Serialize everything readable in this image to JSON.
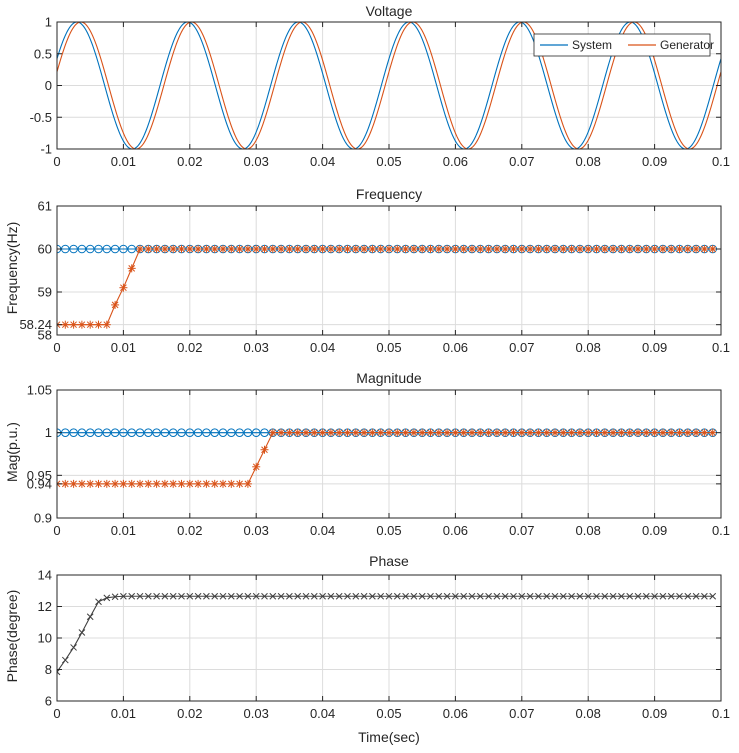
{
  "figure": {
    "colors": {
      "system": "#0072BD",
      "generator": "#D95319",
      "phase": "#404040",
      "grid": "#dcdcdc",
      "axis": "#262626"
    }
  },
  "chart_data": [
    {
      "id": "voltage",
      "type": "line",
      "title": "Voltage",
      "xlabel": "",
      "ylabel": "",
      "xlim": [
        0,
        0.1
      ],
      "ylim": [
        -1,
        1
      ],
      "xticks": [
        0,
        0.01,
        0.02,
        0.03,
        0.04,
        0.05,
        0.06,
        0.07,
        0.08,
        0.09,
        0.1
      ],
      "xtick_labels": [
        "0",
        "0.01",
        "0.02",
        "0.03",
        "0.04",
        "0.05",
        "0.06",
        "0.07",
        "0.08",
        "0.09",
        "0.1"
      ],
      "yticks": [
        -1,
        -0.5,
        0,
        0.5,
        1
      ],
      "ytick_labels": [
        "-1",
        "-0.5",
        "0",
        "0.5",
        "1"
      ],
      "grid": true,
      "legend": "top-right",
      "series": [
        {
          "name": "System",
          "color": "#0072BD",
          "function": "sin",
          "amplitude": 1,
          "frequency_hz": 60,
          "phase_deg": 25
        },
        {
          "name": "Generator",
          "color": "#D95319",
          "function": "sin",
          "amplitude": 1,
          "frequency_hz": 60,
          "phase_deg": 12.5
        }
      ]
    },
    {
      "id": "frequency",
      "type": "line",
      "title": "Frequency",
      "xlabel": "",
      "ylabel": "Frequency(Hz)",
      "xlim": [
        0,
        0.1
      ],
      "ylim": [
        58,
        61
      ],
      "xticks": [
        0,
        0.01,
        0.02,
        0.03,
        0.04,
        0.05,
        0.06,
        0.07,
        0.08,
        0.09,
        0.1
      ],
      "xtick_labels": [
        "0",
        "0.01",
        "0.02",
        "0.03",
        "0.04",
        "0.05",
        "0.06",
        "0.07",
        "0.08",
        "0.09",
        "0.1"
      ],
      "yticks": [
        58,
        58.24,
        59,
        60,
        61
      ],
      "ytick_labels": [
        "58",
        "58.24",
        "59",
        "60",
        "61"
      ],
      "grid": true,
      "x": [
        0,
        0.00125,
        0.0025,
        0.00375,
        0.005,
        0.00625,
        0.0075,
        0.00875,
        0.01,
        0.01125,
        0.0125,
        0.01375,
        0.015,
        0.01625,
        0.0175,
        0.01875,
        0.02,
        0.02125,
        0.0225,
        0.02375,
        0.025,
        0.02625,
        0.0275,
        0.02875,
        0.03,
        0.03125,
        0.0325,
        0.03375,
        0.035,
        0.03625,
        0.0375,
        0.03875,
        0.04,
        0.04125,
        0.0425,
        0.04375,
        0.045,
        0.04625,
        0.0475,
        0.04875,
        0.05,
        0.05125,
        0.0525,
        0.05375,
        0.055,
        0.05625,
        0.0575,
        0.05875,
        0.06,
        0.06125,
        0.0625,
        0.06375,
        0.065,
        0.06625,
        0.0675,
        0.06875,
        0.07,
        0.07125,
        0.0725,
        0.07375,
        0.075,
        0.07625,
        0.0775,
        0.07875,
        0.08,
        0.08125,
        0.0825,
        0.08375,
        0.085,
        0.08625,
        0.0875,
        0.08875,
        0.09,
        0.09125,
        0.0925,
        0.09375,
        0.095,
        0.09625,
        0.0975,
        0.09875
      ],
      "series": [
        {
          "name": "",
          "color": "#0072BD",
          "marker": "o",
          "values": [
            60,
            60,
            60,
            60,
            60,
            60,
            60,
            60,
            60,
            60,
            60,
            60,
            60,
            60,
            60,
            60,
            60,
            60,
            60,
            60,
            60,
            60,
            60,
            60,
            60,
            60,
            60,
            60,
            60,
            60,
            60,
            60,
            60,
            60,
            60,
            60,
            60,
            60,
            60,
            60,
            60,
            60,
            60,
            60,
            60,
            60,
            60,
            60,
            60,
            60,
            60,
            60,
            60,
            60,
            60,
            60,
            60,
            60,
            60,
            60,
            60,
            60,
            60,
            60,
            60,
            60,
            60,
            60,
            60,
            60,
            60,
            60,
            60,
            60,
            60,
            60,
            60,
            60,
            60,
            60
          ]
        },
        {
          "name": "",
          "color": "#D95319",
          "marker": "*",
          "values": [
            58.24,
            58.24,
            58.24,
            58.24,
            58.24,
            58.24,
            58.24,
            58.7,
            59.1,
            59.55,
            60,
            60,
            60,
            60,
            60,
            60,
            60,
            60,
            60,
            60,
            60,
            60,
            60,
            60,
            60,
            60,
            60,
            60,
            60,
            60,
            60,
            60,
            60,
            60,
            60,
            60,
            60,
            60,
            60,
            60,
            60,
            60,
            60,
            60,
            60,
            60,
            60,
            60,
            60,
            60,
            60,
            60,
            60,
            60,
            60,
            60,
            60,
            60,
            60,
            60,
            60,
            60,
            60,
            60,
            60,
            60,
            60,
            60,
            60,
            60,
            60,
            60,
            60,
            60,
            60,
            60,
            60,
            60,
            60,
            60
          ]
        }
      ]
    },
    {
      "id": "magnitude",
      "type": "line",
      "title": "Magnitude",
      "xlabel": "",
      "ylabel": "Mag(p.u.)",
      "xlim": [
        0,
        0.1
      ],
      "ylim": [
        0.9,
        1.05
      ],
      "xticks": [
        0,
        0.01,
        0.02,
        0.03,
        0.04,
        0.05,
        0.06,
        0.07,
        0.08,
        0.09,
        0.1
      ],
      "xtick_labels": [
        "0",
        "0.01",
        "0.02",
        "0.03",
        "0.04",
        "0.05",
        "0.06",
        "0.07",
        "0.08",
        "0.09",
        "0.1"
      ],
      "yticks": [
        0.9,
        0.94,
        0.95,
        1,
        1.05
      ],
      "ytick_labels": [
        "0.9",
        "0.94",
        "0.95",
        "1",
        "1.05"
      ],
      "grid": true,
      "x": [
        0,
        0.00125,
        0.0025,
        0.00375,
        0.005,
        0.00625,
        0.0075,
        0.00875,
        0.01,
        0.01125,
        0.0125,
        0.01375,
        0.015,
        0.01625,
        0.0175,
        0.01875,
        0.02,
        0.02125,
        0.0225,
        0.02375,
        0.025,
        0.02625,
        0.0275,
        0.02875,
        0.03,
        0.03125,
        0.0325,
        0.03375,
        0.035,
        0.03625,
        0.0375,
        0.03875,
        0.04,
        0.04125,
        0.0425,
        0.04375,
        0.045,
        0.04625,
        0.0475,
        0.04875,
        0.05,
        0.05125,
        0.0525,
        0.05375,
        0.055,
        0.05625,
        0.0575,
        0.05875,
        0.06,
        0.06125,
        0.0625,
        0.06375,
        0.065,
        0.06625,
        0.0675,
        0.06875,
        0.07,
        0.07125,
        0.0725,
        0.07375,
        0.075,
        0.07625,
        0.0775,
        0.07875,
        0.08,
        0.08125,
        0.0825,
        0.08375,
        0.085,
        0.08625,
        0.0875,
        0.08875,
        0.09,
        0.09125,
        0.0925,
        0.09375,
        0.095,
        0.09625,
        0.0975,
        0.09875
      ],
      "series": [
        {
          "name": "",
          "color": "#0072BD",
          "marker": "o",
          "values": [
            1,
            1,
            1,
            1,
            1,
            1,
            1,
            1,
            1,
            1,
            1,
            1,
            1,
            1,
            1,
            1,
            1,
            1,
            1,
            1,
            1,
            1,
            1,
            1,
            1,
            1,
            1,
            1,
            1,
            1,
            1,
            1,
            1,
            1,
            1,
            1,
            1,
            1,
            1,
            1,
            1,
            1,
            1,
            1,
            1,
            1,
            1,
            1,
            1,
            1,
            1,
            1,
            1,
            1,
            1,
            1,
            1,
            1,
            1,
            1,
            1,
            1,
            1,
            1,
            1,
            1,
            1,
            1,
            1,
            1,
            1,
            1,
            1,
            1,
            1,
            1,
            1,
            1,
            1,
            1
          ]
        },
        {
          "name": "",
          "color": "#D95319",
          "marker": "*",
          "values": [
            0.94,
            0.94,
            0.94,
            0.94,
            0.94,
            0.94,
            0.94,
            0.94,
            0.94,
            0.94,
            0.94,
            0.94,
            0.94,
            0.94,
            0.94,
            0.94,
            0.94,
            0.94,
            0.94,
            0.94,
            0.94,
            0.94,
            0.94,
            0.94,
            0.96,
            0.98,
            1,
            1,
            1,
            1,
            1,
            1,
            1,
            1,
            1,
            1,
            1,
            1,
            1,
            1,
            1,
            1,
            1,
            1,
            1,
            1,
            1,
            1,
            1,
            1,
            1,
            1,
            1,
            1,
            1,
            1,
            1,
            1,
            1,
            1,
            1,
            1,
            1,
            1,
            1,
            1,
            1,
            1,
            1,
            1,
            1,
            1,
            1,
            1,
            1,
            1,
            1,
            1,
            1,
            1
          ]
        }
      ]
    },
    {
      "id": "phase",
      "type": "line",
      "title": "Phase",
      "xlabel": "Time(sec)",
      "ylabel": "Phase(degree)",
      "xlim": [
        0,
        0.1
      ],
      "ylim": [
        6,
        14
      ],
      "xticks": [
        0,
        0.01,
        0.02,
        0.03,
        0.04,
        0.05,
        0.06,
        0.07,
        0.08,
        0.09,
        0.1
      ],
      "xtick_labels": [
        "0",
        "0.01",
        "0.02",
        "0.03",
        "0.04",
        "0.05",
        "0.06",
        "0.07",
        "0.08",
        "0.09",
        "0.1"
      ],
      "yticks": [
        6,
        8,
        10,
        12,
        14
      ],
      "ytick_labels": [
        "6",
        "8",
        "10",
        "12",
        "14"
      ],
      "grid": true,
      "x": [
        0,
        0.00125,
        0.0025,
        0.00375,
        0.005,
        0.00625,
        0.0075,
        0.00875,
        0.01,
        0.01125,
        0.0125,
        0.01375,
        0.015,
        0.01625,
        0.0175,
        0.01875,
        0.02,
        0.02125,
        0.0225,
        0.02375,
        0.025,
        0.02625,
        0.0275,
        0.02875,
        0.03,
        0.03125,
        0.0325,
        0.03375,
        0.035,
        0.03625,
        0.0375,
        0.03875,
        0.04,
        0.04125,
        0.0425,
        0.04375,
        0.045,
        0.04625,
        0.0475,
        0.04875,
        0.05,
        0.05125,
        0.0525,
        0.05375,
        0.055,
        0.05625,
        0.0575,
        0.05875,
        0.06,
        0.06125,
        0.0625,
        0.06375,
        0.065,
        0.06625,
        0.0675,
        0.06875,
        0.07,
        0.07125,
        0.0725,
        0.07375,
        0.075,
        0.07625,
        0.0775,
        0.07875,
        0.08,
        0.08125,
        0.0825,
        0.08375,
        0.085,
        0.08625,
        0.0875,
        0.08875,
        0.09,
        0.09125,
        0.0925,
        0.09375,
        0.095,
        0.09625,
        0.0975,
        0.09875
      ],
      "series": [
        {
          "name": "",
          "color": "#404040",
          "marker": "x",
          "values": [
            7.85,
            8.6,
            9.4,
            10.35,
            11.35,
            12.3,
            12.55,
            12.62,
            12.65,
            12.65,
            12.65,
            12.65,
            12.65,
            12.65,
            12.65,
            12.65,
            12.65,
            12.65,
            12.65,
            12.65,
            12.65,
            12.65,
            12.65,
            12.65,
            12.65,
            12.65,
            12.65,
            12.65,
            12.65,
            12.65,
            12.65,
            12.65,
            12.65,
            12.65,
            12.65,
            12.65,
            12.65,
            12.65,
            12.65,
            12.65,
            12.65,
            12.65,
            12.65,
            12.65,
            12.65,
            12.65,
            12.65,
            12.65,
            12.65,
            12.65,
            12.65,
            12.65,
            12.65,
            12.65,
            12.65,
            12.65,
            12.65,
            12.65,
            12.65,
            12.65,
            12.65,
            12.65,
            12.65,
            12.65,
            12.65,
            12.65,
            12.65,
            12.65,
            12.65,
            12.65,
            12.65,
            12.65,
            12.65,
            12.65,
            12.65,
            12.65,
            12.65,
            12.65,
            12.65,
            12.65
          ]
        }
      ]
    }
  ]
}
